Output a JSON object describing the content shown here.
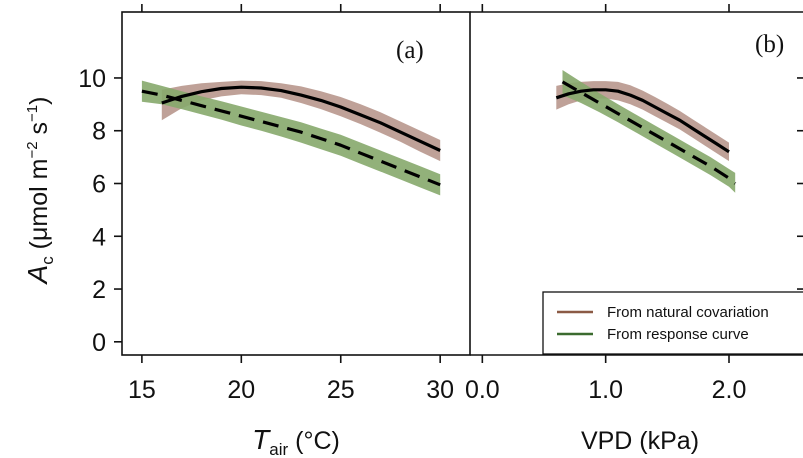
{
  "chart_data": [
    {
      "type": "line",
      "panel_label": "(a)",
      "ylabel_main": "A",
      "ylabel_sub": "c",
      "ylabel_rest": " (μmol m",
      "ylabel_sup1": "−2",
      "ylabel_mid": " s",
      "ylabel_sup2": "−1",
      "ylabel_close": ")",
      "xlabel_main": "T",
      "xlabel_sub": "air",
      "xlabel_rest": " (°C)",
      "xlim": [
        14,
        31.5
      ],
      "ylim": [
        -0.5,
        12.5
      ],
      "xticks": [
        15,
        20,
        25,
        30
      ],
      "xtick_labels": [
        "15",
        "20",
        "25",
        "30"
      ],
      "yticks": [
        0,
        2,
        4,
        6,
        8,
        10
      ],
      "ytick_labels": [
        "0",
        "2",
        "4",
        "6",
        "8",
        "10"
      ],
      "series": [
        {
          "name": "From natural covariation",
          "color": "#8b5a45",
          "band_color": "#b8978d",
          "line_style": "solid",
          "x": [
            16,
            17,
            18,
            19,
            20,
            21,
            22,
            23,
            24,
            25,
            26,
            27,
            28,
            29,
            30
          ],
          "y": [
            9.05,
            9.3,
            9.48,
            9.6,
            9.65,
            9.62,
            9.52,
            9.35,
            9.15,
            8.9,
            8.6,
            8.3,
            7.95,
            7.6,
            7.25
          ],
          "upper": [
            9.55,
            9.7,
            9.8,
            9.85,
            9.9,
            9.88,
            9.8,
            9.68,
            9.5,
            9.28,
            9.0,
            8.7,
            8.35,
            8.0,
            7.65
          ],
          "lower": [
            8.4,
            8.85,
            9.15,
            9.3,
            9.38,
            9.35,
            9.25,
            9.05,
            8.82,
            8.55,
            8.25,
            7.92,
            7.58,
            7.2,
            6.85
          ]
        },
        {
          "name": "From response curve",
          "color": "#3b6b2f",
          "band_color": "#86a96c",
          "line_style": "dashed",
          "x": [
            15,
            16,
            17,
            18,
            19,
            20,
            21,
            22,
            23,
            24,
            25,
            26,
            27,
            28,
            29,
            30
          ],
          "y": [
            9.5,
            9.35,
            9.15,
            8.95,
            8.75,
            8.55,
            8.35,
            8.15,
            7.95,
            7.7,
            7.45,
            7.15,
            6.85,
            6.55,
            6.25,
            5.95
          ],
          "upper": [
            9.9,
            9.7,
            9.5,
            9.3,
            9.12,
            8.92,
            8.72,
            8.52,
            8.32,
            8.08,
            7.85,
            7.55,
            7.25,
            6.95,
            6.65,
            6.35
          ],
          "lower": [
            9.1,
            9.0,
            8.82,
            8.62,
            8.42,
            8.2,
            8.0,
            7.78,
            7.55,
            7.3,
            7.05,
            6.75,
            6.45,
            6.15,
            5.85,
            5.55
          ]
        }
      ]
    },
    {
      "type": "line",
      "panel_label": "(b)",
      "xlabel": "VPD (kPa)",
      "xlim": [
        -0.1,
        2.6
      ],
      "ylim": [
        -0.5,
        12.5
      ],
      "xticks": [
        0.0,
        1.0,
        2.0
      ],
      "xtick_labels": [
        "0.0",
        "1.0",
        "2.0"
      ],
      "yticks": [
        0,
        2,
        4,
        6,
        8,
        10
      ],
      "legend": {
        "position": "bottom-right",
        "entries": [
          "From natural covariation",
          "From response curve"
        ]
      },
      "series": [
        {
          "name": "From natural covariation",
          "color": "#8b5a45",
          "band_color": "#b8978d",
          "line_style": "solid",
          "x": [
            0.6,
            0.7,
            0.8,
            0.9,
            1.0,
            1.1,
            1.2,
            1.3,
            1.4,
            1.5,
            1.6,
            1.7,
            1.8,
            1.9,
            2.0
          ],
          "y": [
            9.25,
            9.4,
            9.5,
            9.55,
            9.55,
            9.5,
            9.35,
            9.15,
            8.9,
            8.65,
            8.4,
            8.1,
            7.8,
            7.5,
            7.2
          ],
          "upper": [
            9.7,
            9.8,
            9.85,
            9.88,
            9.88,
            9.85,
            9.72,
            9.52,
            9.28,
            9.02,
            8.75,
            8.45,
            8.15,
            7.85,
            7.55
          ],
          "lower": [
            8.8,
            9.0,
            9.15,
            9.22,
            9.22,
            9.15,
            9.0,
            8.8,
            8.55,
            8.3,
            8.05,
            7.75,
            7.45,
            7.15,
            6.85
          ]
        },
        {
          "name": "From response curve",
          "color": "#3b6b2f",
          "band_color": "#86a96c",
          "line_style": "dashed",
          "x": [
            0.65,
            0.8,
            0.95,
            1.1,
            1.25,
            1.4,
            1.55,
            1.7,
            1.85,
            2.0,
            2.05
          ],
          "y": [
            9.85,
            9.45,
            9.05,
            8.65,
            8.25,
            7.85,
            7.45,
            7.05,
            6.65,
            6.2,
            6.0
          ],
          "upper": [
            10.3,
            9.85,
            9.42,
            9.0,
            8.6,
            8.2,
            7.8,
            7.4,
            7.0,
            6.55,
            6.4
          ],
          "lower": [
            9.35,
            9.05,
            8.7,
            8.32,
            7.92,
            7.52,
            7.12,
            6.72,
            6.32,
            5.88,
            5.65
          ]
        }
      ]
    }
  ]
}
